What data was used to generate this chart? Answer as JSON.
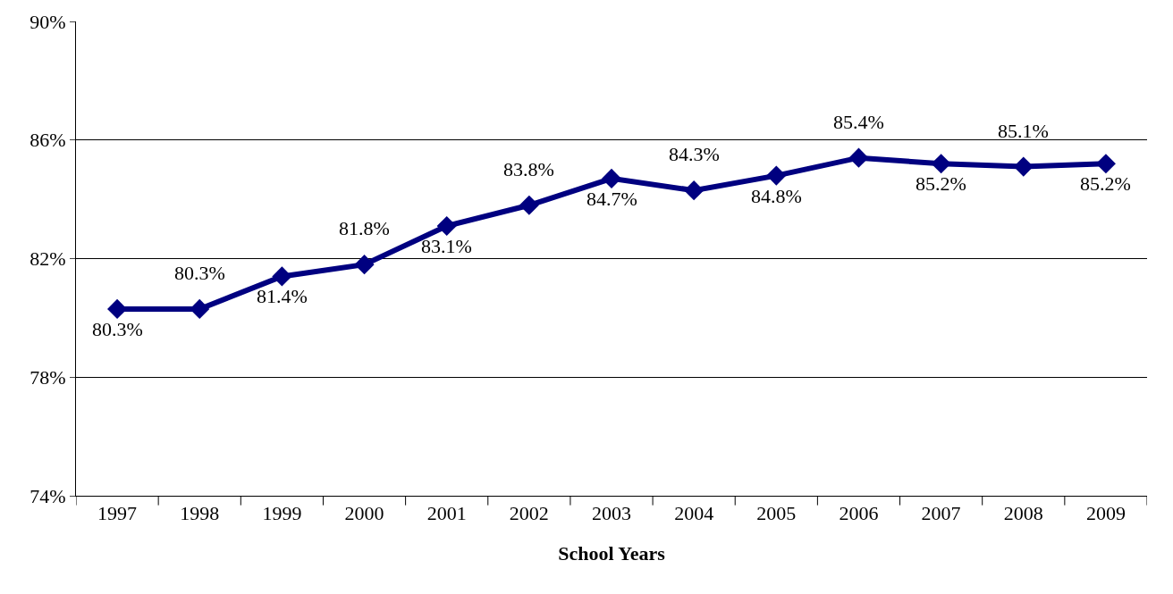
{
  "chart_data": {
    "type": "line",
    "xlabel": "School Years",
    "categories": [
      "1997",
      "1998",
      "1999",
      "2000",
      "2001",
      "2002",
      "2003",
      "2004",
      "2005",
      "2006",
      "2007",
      "2008",
      "2009"
    ],
    "series": [
      {
        "color": "#000080",
        "values": [
          80.3,
          80.3,
          81.4,
          81.8,
          83.1,
          83.8,
          84.7,
          84.3,
          84.8,
          85.4,
          85.2,
          85.1,
          85.2
        ],
        "value_labels": [
          "80.3%",
          "80.3%",
          "81.4%",
          "81.8%",
          "83.1%",
          "83.8%",
          "84.7%",
          "84.3%",
          "84.8%",
          "85.4%",
          "85.2%",
          "85.1%",
          "85.2%"
        ]
      }
    ],
    "ylim": [
      74,
      90
    ],
    "yticks": [
      {
        "value": 74,
        "label": "74%"
      },
      {
        "value": 78,
        "label": "78%"
      },
      {
        "value": 82,
        "label": "82%"
      },
      {
        "value": 86,
        "label": "86%"
      },
      {
        "value": 90,
        "label": "90%"
      }
    ],
    "grid": "y",
    "marker": "diamond",
    "line_style": "solid"
  }
}
